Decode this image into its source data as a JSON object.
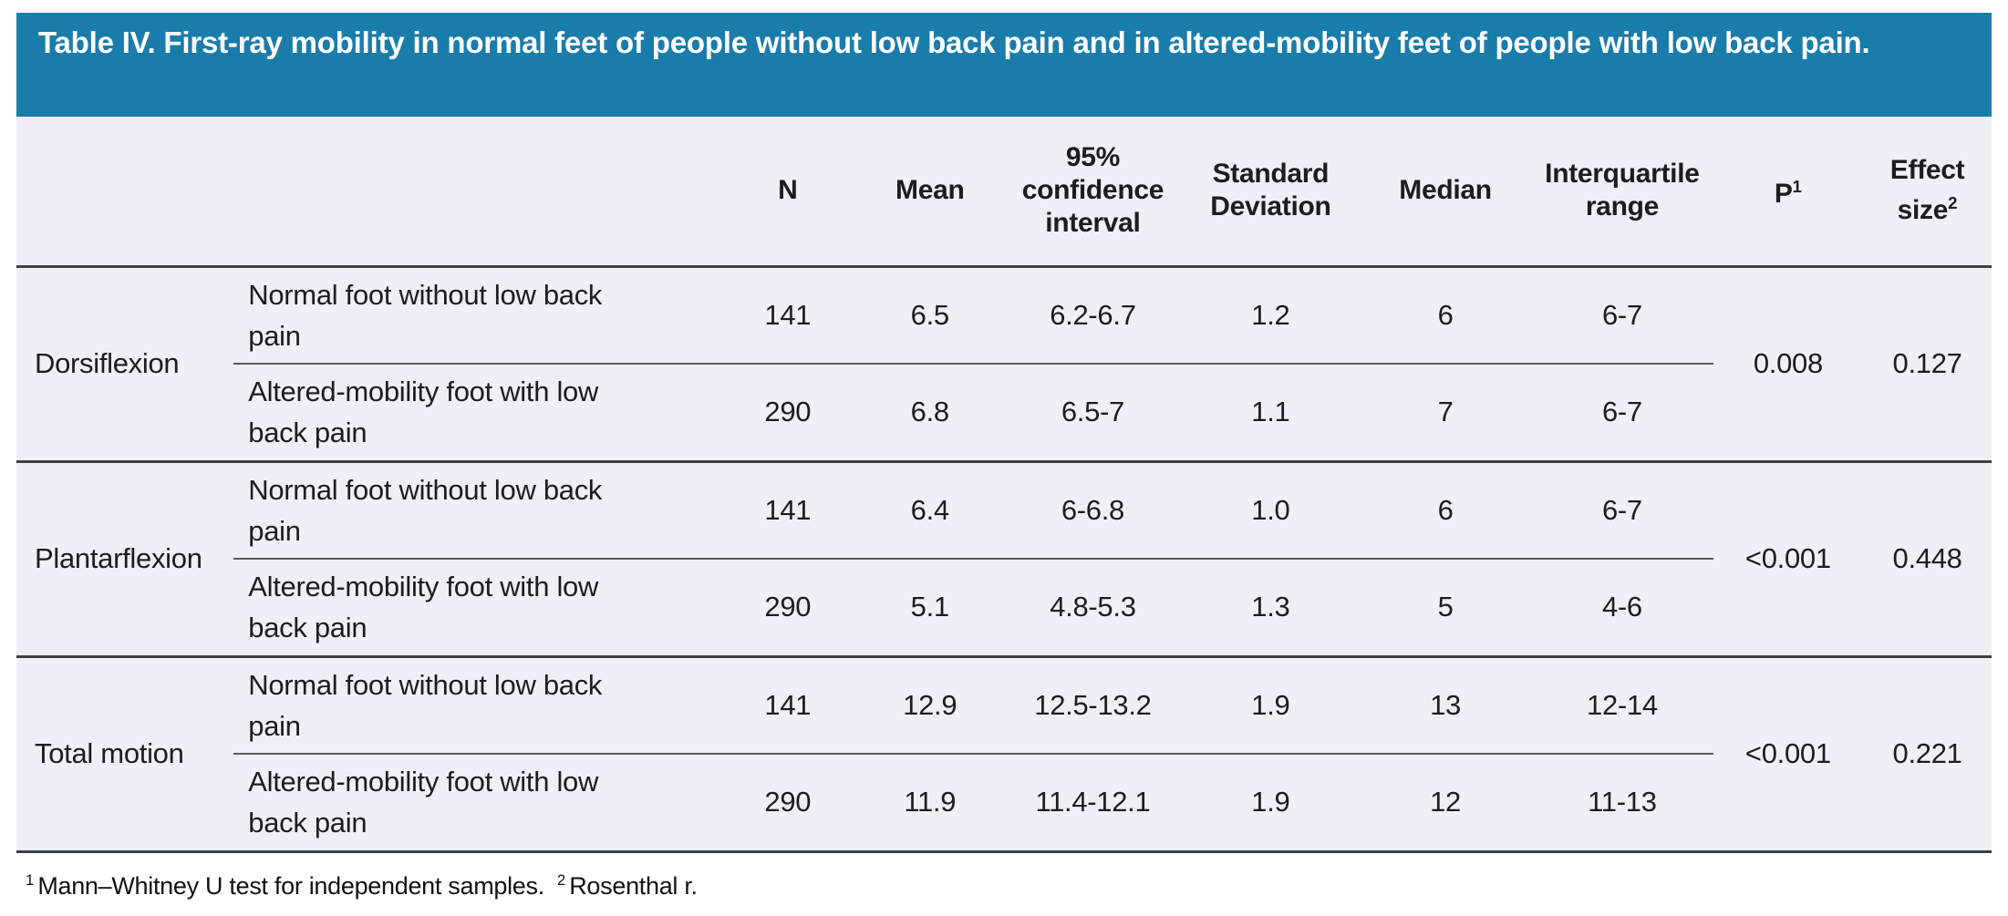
{
  "title": "Table IV. First-ray mobility in normal feet of people without low back pain and in altered-mobility feet of people with low back pain.",
  "columns": {
    "n": "N",
    "mean": "Mean",
    "ci": "95% confidence interval",
    "sd": "Standard Deviation",
    "median": "Median",
    "iqr": "Interquartile range",
    "p": {
      "base": "P",
      "sup": "1"
    },
    "effect": {
      "base": "Effect size",
      "sup": "2"
    }
  },
  "sections": [
    {
      "label": "Dorsiflexion",
      "p": "0.008",
      "effect_size": "0.127",
      "rows": [
        {
          "group": [
            "Normal foot without low back",
            "pain"
          ],
          "n": "141",
          "mean": "6.5",
          "ci": "6.2-6.7",
          "sd": "1.2",
          "median": "6",
          "iqr": "6-7"
        },
        {
          "group": [
            "Altered-mobility foot with low",
            "back pain"
          ],
          "n": "290",
          "mean": "6.8",
          "ci": "6.5-7",
          "sd": "1.1",
          "median": "7",
          "iqr": "6-7"
        }
      ]
    },
    {
      "label": "Plantarflexion",
      "p": "<0.001",
      "effect_size": "0.448",
      "rows": [
        {
          "group": [
            "Normal foot without low back",
            "pain"
          ],
          "n": "141",
          "mean": "6.4",
          "ci": "6-6.8",
          "sd": "1.0",
          "median": "6",
          "iqr": "6-7"
        },
        {
          "group": [
            "Altered-mobility foot with low",
            "back pain"
          ],
          "n": "290",
          "mean": "5.1",
          "ci": "4.8-5.3",
          "sd": "1.3",
          "median": "5",
          "iqr": "4-6"
        }
      ]
    },
    {
      "label": "Total motion",
      "p": "<0.001",
      "effect_size": "0.221",
      "rows": [
        {
          "group": [
            "Normal foot without low back",
            "pain"
          ],
          "n": "141",
          "mean": "12.9",
          "ci": "12.5-13.2",
          "sd": "1.9",
          "median": "13",
          "iqr": "12-14"
        },
        {
          "group": [
            "Altered-mobility foot with low",
            "back pain"
          ],
          "n": "290",
          "mean": "11.9",
          "ci": "11.4-12.1",
          "sd": "1.9",
          "median": "12",
          "iqr": "11-13"
        }
      ]
    }
  ],
  "footnotes": [
    {
      "marker": "1",
      "text": "Mann–Whitney U test for independent samples."
    },
    {
      "marker": "2",
      "text": "Rosenthal r."
    }
  ],
  "colors": {
    "title_bg": "#1a7caa",
    "body_bg": "#edf0f7",
    "rule_dark": "#3b3e41",
    "rule_light": "#595c60"
  }
}
